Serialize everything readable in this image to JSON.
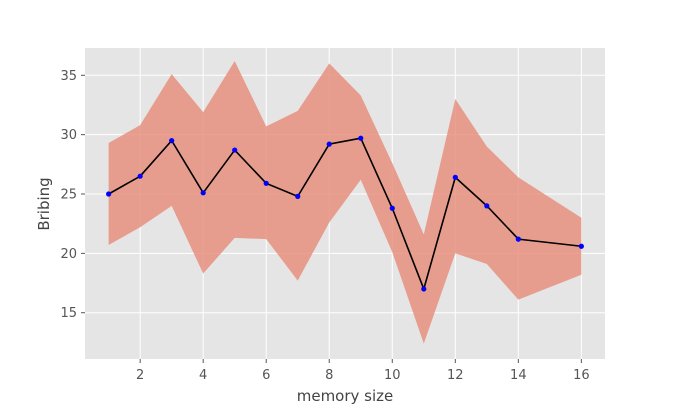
{
  "chart_data": {
    "type": "line",
    "title": "",
    "xlabel": "memory  size",
    "ylabel": "Bribing",
    "xlim": [
      0.25,
      16.75
    ],
    "ylim": [
      11.1,
      37.3
    ],
    "xticks": [
      2,
      4,
      6,
      8,
      10,
      12,
      14,
      16
    ],
    "yticks": [
      15,
      20,
      25,
      30,
      35
    ],
    "grid": true,
    "legend": "none",
    "colors": {
      "background": "#e5e5e5",
      "grid": "#ffffff",
      "band": "#e8907f",
      "line": "#000000",
      "marker": "#0000ff"
    },
    "x": [
      1,
      2,
      3,
      4,
      5,
      6,
      7,
      8,
      9,
      10,
      11,
      12,
      13,
      14,
      16
    ],
    "series": [
      {
        "values": [
          25.0,
          26.5,
          29.5,
          25.1,
          28.7,
          25.9,
          24.8,
          29.2,
          29.7,
          23.8,
          17.0,
          26.4,
          24.0,
          21.2,
          20.6
        ],
        "lower": [
          20.7,
          22.2,
          24.0,
          18.3,
          21.3,
          21.2,
          17.7,
          22.6,
          26.2,
          20.1,
          12.4,
          20.0,
          19.1,
          16.1,
          18.2
        ],
        "upper": [
          29.3,
          30.8,
          35.1,
          31.9,
          36.2,
          30.7,
          32.0,
          36.0,
          33.3,
          27.6,
          21.6,
          33.0,
          29.0,
          26.4,
          23.0
        ]
      }
    ]
  }
}
